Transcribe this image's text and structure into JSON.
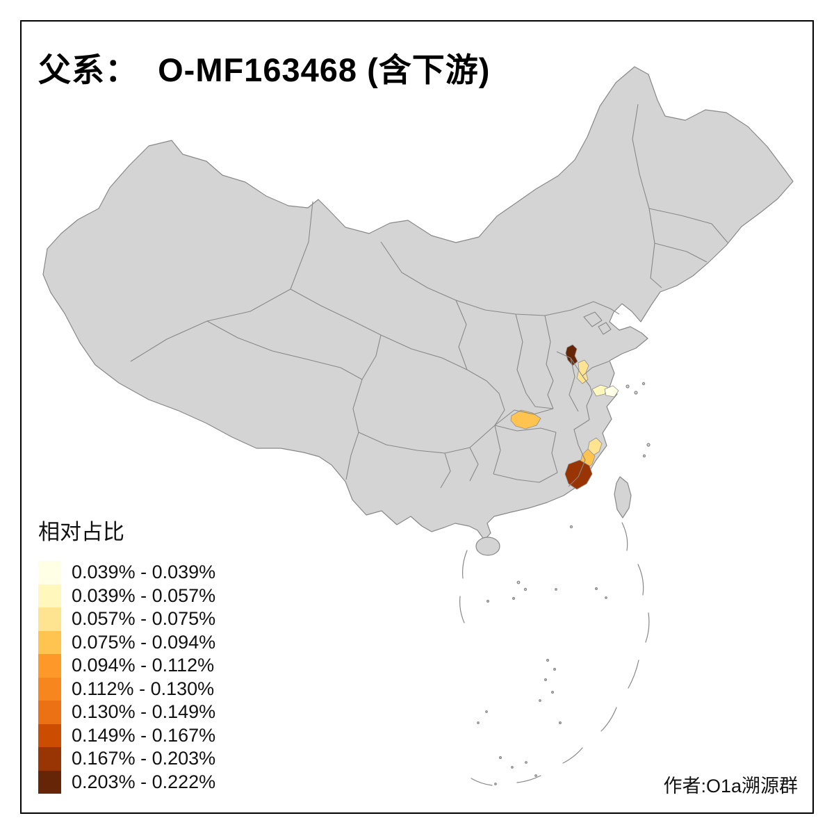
{
  "title": "父系：  O-MF163468 (含下游)",
  "legend": {
    "title": "相对占比",
    "classes": [
      {
        "label": "0.039% - 0.039%",
        "color": "#FFFFE5"
      },
      {
        "label": "0.039% - 0.057%",
        "color": "#FFF7BC"
      },
      {
        "label": "0.057% - 0.075%",
        "color": "#FEE391"
      },
      {
        "label": "0.075% - 0.094%",
        "color": "#FEC44F"
      },
      {
        "label": "0.094% - 0.112%",
        "color": "#FE9929"
      },
      {
        "label": "0.112% - 0.130%",
        "color": "#F8861E"
      },
      {
        "label": "0.130% - 0.149%",
        "color": "#EC7014"
      },
      {
        "label": "0.149% - 0.167%",
        "color": "#CC4C02"
      },
      {
        "label": "0.167% - 0.203%",
        "color": "#993404"
      },
      {
        "label": "0.203% - 0.222%",
        "color": "#662506"
      }
    ]
  },
  "credit": "作者:O1a溯源群",
  "map": {
    "land_fill": "#d4d4d4",
    "border_color": "#888888",
    "highlighted_regions": [
      {
        "name": "henan-region",
        "color": "#662506"
      },
      {
        "name": "anhui-region",
        "color": "#FEE391"
      },
      {
        "name": "jiangsu-region",
        "color": "#FFF7BC"
      },
      {
        "name": "shanghai-region",
        "color": "#FFFFE5"
      },
      {
        "name": "hunan-region",
        "color": "#FEC44F"
      },
      {
        "name": "fujian-north-region",
        "color": "#FEE391"
      },
      {
        "name": "fujian-coast-region",
        "color": "#FEC44F"
      },
      {
        "name": "guangdong-east-region",
        "color": "#993404"
      }
    ]
  }
}
